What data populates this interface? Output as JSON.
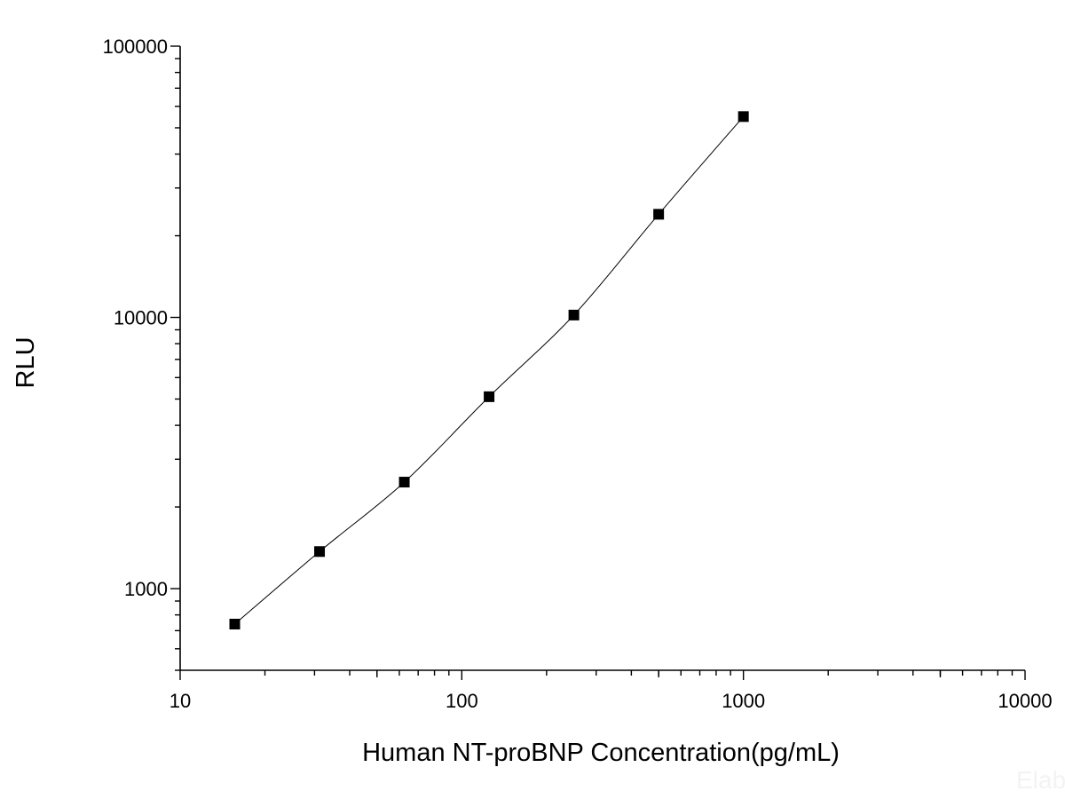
{
  "chart_data": {
    "type": "line",
    "title": "",
    "xlabel": "Human NT-proBNP Concentration(pg/mL)",
    "ylabel": "RLU",
    "xscale": "log",
    "yscale": "log",
    "xlim": [
      10,
      10000
    ],
    "ylim": [
      500,
      100000
    ],
    "x_ticks": [
      10,
      100,
      1000,
      10000
    ],
    "x_tick_labels": [
      "10",
      "100",
      "1000",
      "10000"
    ],
    "y_ticks": [
      1000,
      10000,
      100000
    ],
    "y_tick_labels": [
      "1000",
      "10000",
      "100000"
    ],
    "grid": false,
    "legend": "none",
    "series": [
      {
        "x": [
          15.625,
          31.25,
          62.5,
          125,
          250,
          500,
          1000
        ],
        "y": [
          740,
          1370,
          2470,
          5100,
          10200,
          24000,
          55000
        ],
        "marker": "square",
        "color": "#000000"
      }
    ],
    "watermark": "Elab"
  }
}
